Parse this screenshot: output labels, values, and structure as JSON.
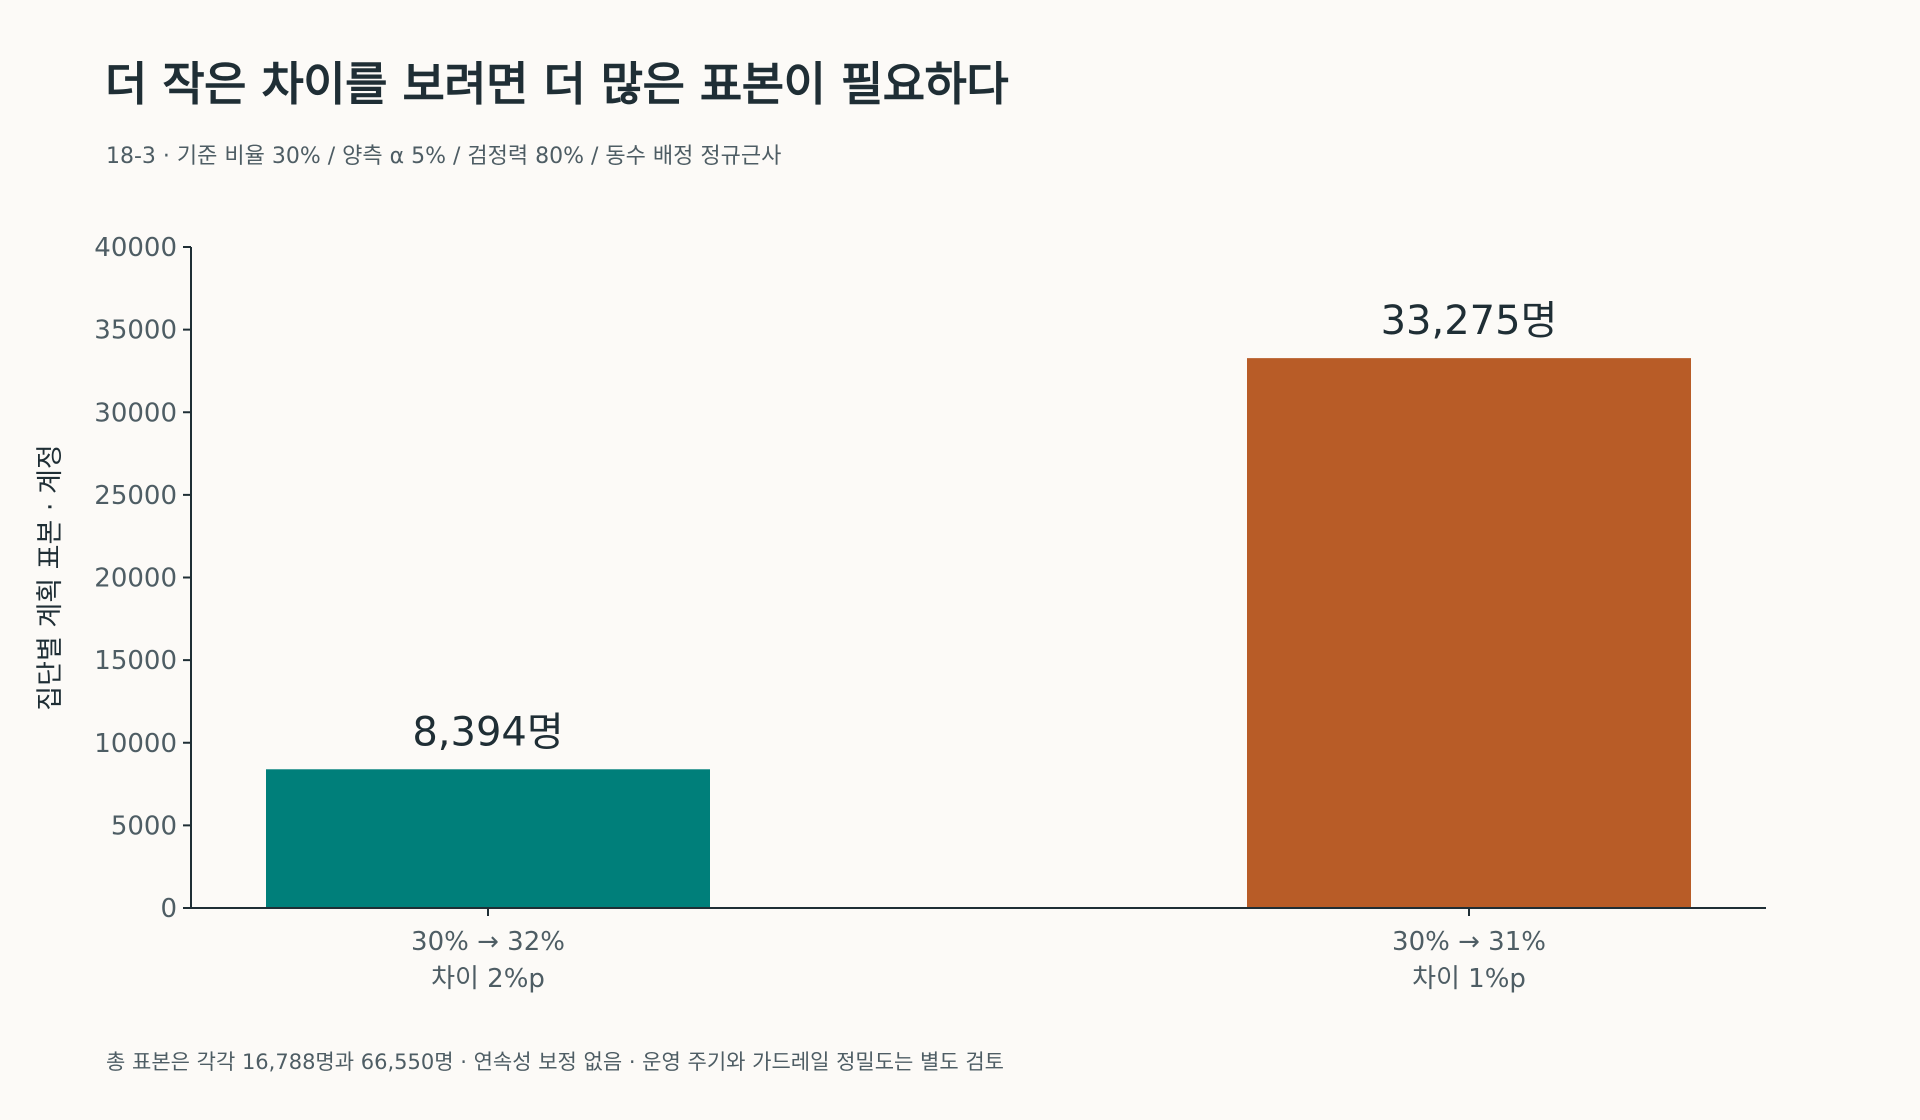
{
  "header": {
    "title": "더 작은 차이를 보려면 더 많은 표본이 필요하다",
    "subtitle": "18-3 · 기준 비율 30% / 양측 α 5% / 검정력 80% / 동수 배정 정규근사"
  },
  "footnote": "총 표본은 각각 16,788명과 66,550명 · 연속성 보정 없음 · 운영 주기와 가드레일 정밀도는 별도 검토",
  "chart_data": {
    "type": "bar",
    "title": "더 작은 차이를 보려면 더 많은 표본이 필요하다",
    "subtitle": "18-3 · 기준 비율 30% / 양측 α 5% / 검정력 80% / 동수 배정 정규근사",
    "xlabel": "",
    "ylabel": "집단별 계획 표본 · 계정",
    "ylim": [
      0,
      40000
    ],
    "yticks": [
      0,
      5000,
      10000,
      15000,
      20000,
      25000,
      30000,
      35000,
      40000
    ],
    "grid": false,
    "legend": "none",
    "categories": [
      [
        "30% → 32%",
        "차이 2%p"
      ],
      [
        "30% → 31%",
        "차이 1%p"
      ]
    ],
    "values": [
      8394,
      33275
    ],
    "value_labels": [
      "8,394명",
      "33,275명"
    ],
    "colors": [
      "#007F7A",
      "#B85C27"
    ]
  }
}
